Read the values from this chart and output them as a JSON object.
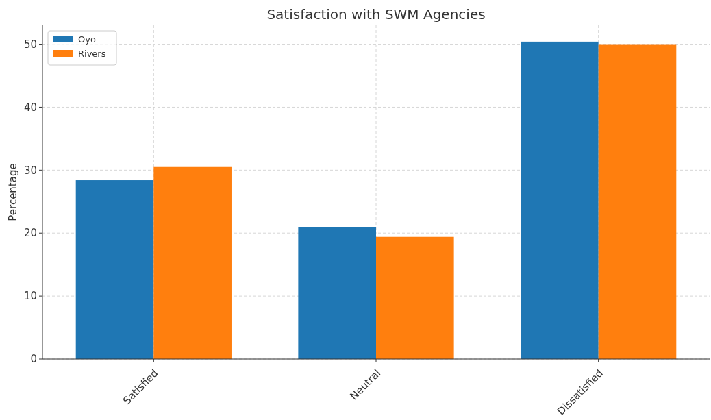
{
  "chart_data": {
    "type": "bar",
    "title": "Satisfaction with SWM Agencies",
    "ylabel": "Percentage",
    "categories": [
      "Satisfied",
      "Neutral",
      "Dissatisfied"
    ],
    "series": [
      {
        "name": "Oyo",
        "color": "#1f77b4",
        "values": [
          28.4,
          21.0,
          50.4
        ]
      },
      {
        "name": "Rivers",
        "color": "#ff7f0e",
        "values": [
          30.5,
          19.4,
          50.0
        ]
      }
    ],
    "ylim": [
      0,
      53
    ],
    "yticks": [
      0,
      10,
      20,
      30,
      40,
      50
    ],
    "grid": true,
    "legend": "top left"
  }
}
